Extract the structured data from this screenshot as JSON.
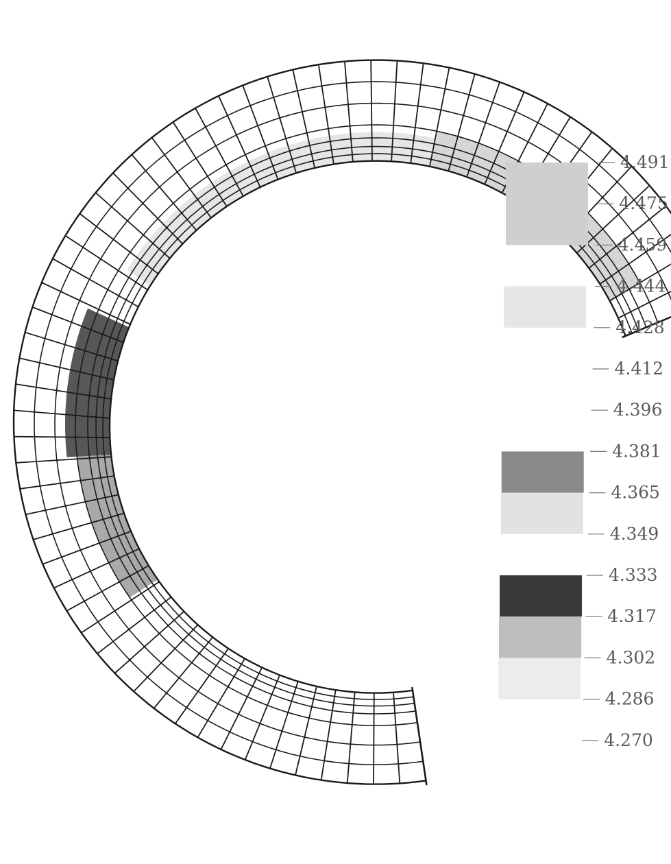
{
  "legend": {
    "ticks": [
      "4.491",
      "4.475",
      "4.459",
      "4.444",
      "4.428",
      "4.412",
      "4.396",
      "4.381",
      "4.365",
      "4.349",
      "4.333",
      "4.317",
      "4.302",
      "4.286",
      "4.270"
    ],
    "bands": [
      {
        "from": "4.491",
        "to": "4.459",
        "color": "#cfcfcf"
      },
      {
        "from": "4.444",
        "to": "4.428",
        "color": "#e6e6e6"
      },
      {
        "from": "4.381",
        "to": "4.365",
        "color": "#8a8a8a"
      },
      {
        "from": "4.365",
        "to": "4.349",
        "color": "#e2e2e2"
      },
      {
        "from": "4.333",
        "to": "4.317",
        "color": "#3a3a3a"
      },
      {
        "from": "4.317",
        "to": "4.302",
        "color": "#bdbdbd"
      },
      {
        "from": "4.302",
        "to": "4.286",
        "color": "#ececec"
      }
    ]
  },
  "mesh": {
    "line_color": "#1a1a1a",
    "shaded_regions": [
      {
        "name": "upper-inner-band",
        "color": "#cfcfcf"
      },
      {
        "name": "middle-inner-band",
        "color": "#e2e2e2"
      },
      {
        "name": "lower-dark-patch",
        "color": "#3a3a3a"
      },
      {
        "name": "lower-medium-patch",
        "color": "#9a9a9a"
      }
    ]
  }
}
